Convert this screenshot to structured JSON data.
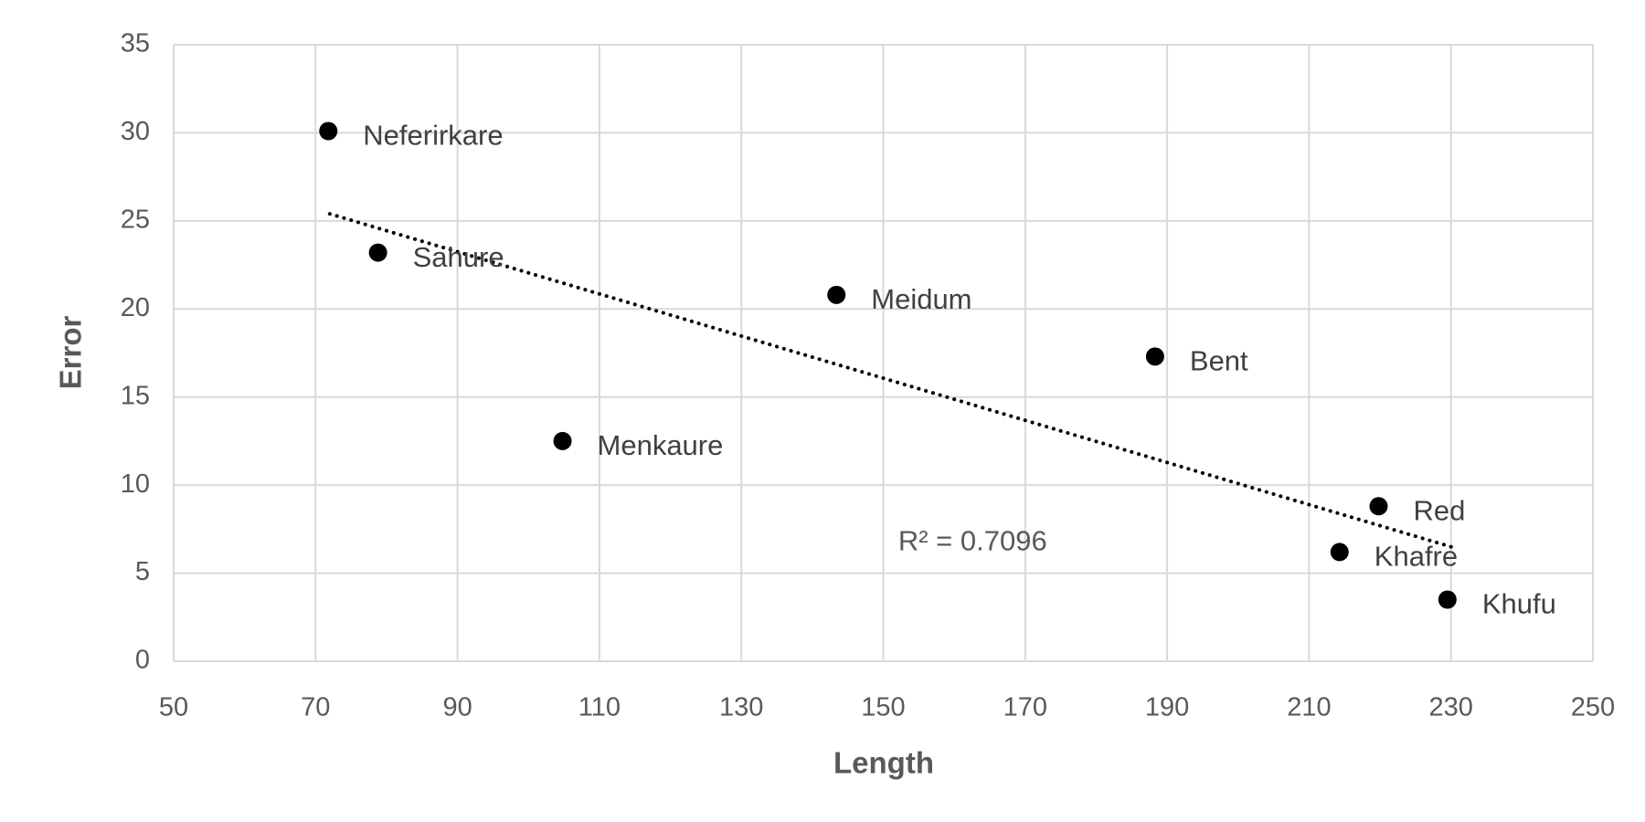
{
  "chart_data": {
    "type": "scatter",
    "x_label": "Length",
    "y_label": "Error",
    "x": [
      71.8,
      78.8,
      104.8,
      143.4,
      188.3,
      219.8,
      214.3,
      229.5
    ],
    "values": [
      30.1,
      23.2,
      12.5,
      20.8,
      17.3,
      8.8,
      6.2,
      3.5
    ],
    "point_labels": [
      "Neferirkare",
      "Sahure",
      "Menkaure",
      "Meidum",
      "Bent",
      "Red",
      "Khafre",
      "Khufu"
    ],
    "color": "#000000",
    "trendline": {
      "x": [
        72,
        230
      ],
      "values": [
        25.4,
        6.5
      ],
      "label": "R² = 0.7096",
      "style": "dotted"
    },
    "xlim": [
      50,
      250
    ],
    "xticks": [
      50,
      70,
      90,
      110,
      130,
      150,
      170,
      190,
      210,
      230,
      250
    ],
    "ylim": [
      0,
      35
    ],
    "yticks": [
      0,
      5,
      10,
      15,
      20,
      25,
      30,
      35
    ],
    "grid": true
  }
}
